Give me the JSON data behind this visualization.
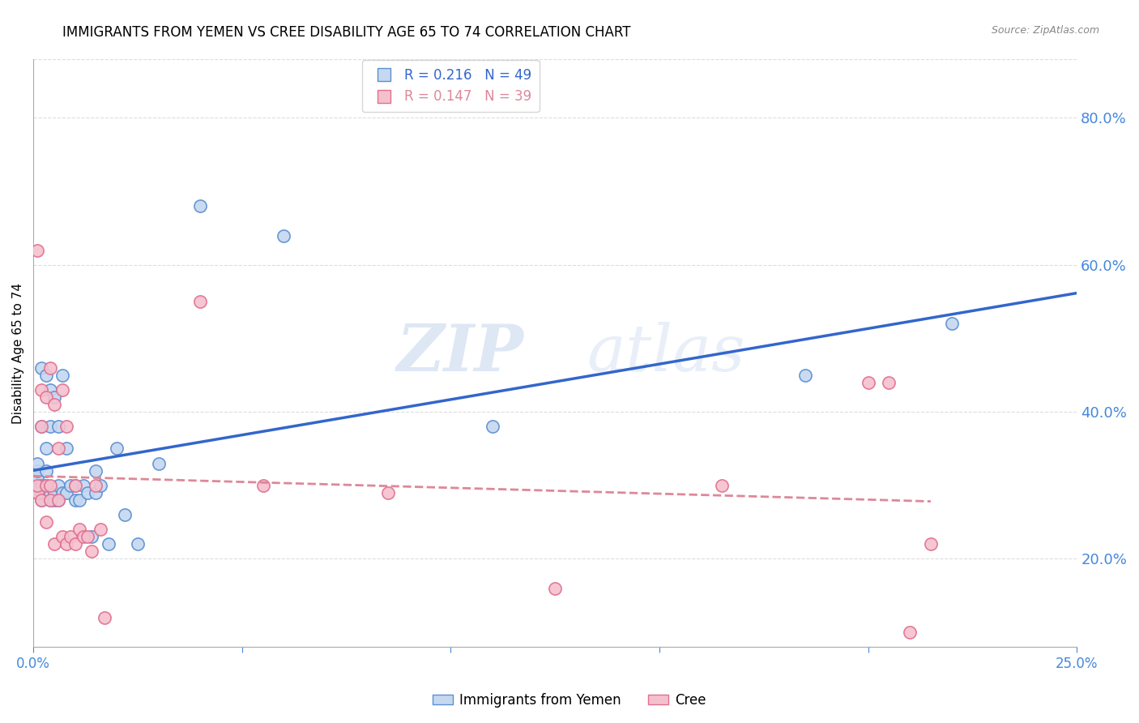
{
  "title": "IMMIGRANTS FROM YEMEN VS CREE DISABILITY AGE 65 TO 74 CORRELATION CHART",
  "source": "Source: ZipAtlas.com",
  "ylabel": "Disability Age 65 to 74",
  "xlim": [
    0.0,
    0.25
  ],
  "ylim": [
    0.08,
    0.88
  ],
  "xticks": [
    0.0,
    0.05,
    0.1,
    0.15,
    0.2,
    0.25
  ],
  "xtick_labels": [
    "0.0%",
    "",
    "",
    "",
    "",
    "25.0%"
  ],
  "yticks": [
    0.2,
    0.4,
    0.6,
    0.8
  ],
  "r_yemen": 0.216,
  "n_yemen": 49,
  "r_cree": 0.147,
  "n_cree": 39,
  "color_yemen_fill": "#c5d8f0",
  "color_yemen_edge": "#5b8fd4",
  "color_cree_fill": "#f5c0ce",
  "color_cree_edge": "#e07090",
  "color_line_yemen": "#3366cc",
  "color_line_cree": "#dd8899",
  "color_axis_text": "#4488dd",
  "color_grid": "#dddddd",
  "background_color": "#ffffff",
  "legend_label_yemen": "Immigrants from Yemen",
  "legend_label_cree": "Cree",
  "yemen_x": [
    0.001,
    0.001,
    0.001,
    0.001,
    0.001,
    0.002,
    0.002,
    0.002,
    0.002,
    0.002,
    0.003,
    0.003,
    0.003,
    0.003,
    0.003,
    0.004,
    0.004,
    0.004,
    0.004,
    0.005,
    0.005,
    0.005,
    0.006,
    0.006,
    0.006,
    0.007,
    0.007,
    0.008,
    0.008,
    0.009,
    0.01,
    0.01,
    0.011,
    0.012,
    0.013,
    0.014,
    0.015,
    0.015,
    0.016,
    0.018,
    0.02,
    0.022,
    0.025,
    0.03,
    0.04,
    0.06,
    0.11,
    0.185,
    0.22
  ],
  "yemen_y": [
    0.29,
    0.3,
    0.31,
    0.32,
    0.33,
    0.28,
    0.29,
    0.3,
    0.38,
    0.46,
    0.29,
    0.3,
    0.32,
    0.35,
    0.45,
    0.28,
    0.29,
    0.38,
    0.43,
    0.28,
    0.29,
    0.42,
    0.28,
    0.3,
    0.38,
    0.29,
    0.45,
    0.29,
    0.35,
    0.3,
    0.28,
    0.3,
    0.28,
    0.3,
    0.29,
    0.23,
    0.29,
    0.32,
    0.3,
    0.22,
    0.35,
    0.26,
    0.22,
    0.33,
    0.68,
    0.64,
    0.38,
    0.45,
    0.52
  ],
  "cree_x": [
    0.001,
    0.001,
    0.001,
    0.002,
    0.002,
    0.002,
    0.003,
    0.003,
    0.003,
    0.004,
    0.004,
    0.004,
    0.005,
    0.005,
    0.006,
    0.006,
    0.007,
    0.007,
    0.008,
    0.008,
    0.009,
    0.01,
    0.01,
    0.011,
    0.012,
    0.013,
    0.014,
    0.015,
    0.016,
    0.017,
    0.04,
    0.055,
    0.085,
    0.125,
    0.165,
    0.2,
    0.205,
    0.21,
    0.215
  ],
  "cree_y": [
    0.29,
    0.3,
    0.62,
    0.28,
    0.38,
    0.43,
    0.25,
    0.3,
    0.42,
    0.28,
    0.3,
    0.46,
    0.22,
    0.41,
    0.28,
    0.35,
    0.23,
    0.43,
    0.22,
    0.38,
    0.23,
    0.22,
    0.3,
    0.24,
    0.23,
    0.23,
    0.21,
    0.3,
    0.24,
    0.12,
    0.55,
    0.3,
    0.29,
    0.16,
    0.3,
    0.44,
    0.44,
    0.1,
    0.22
  ],
  "watermark_zip": "ZIP",
  "watermark_atlas": "atlas",
  "title_fontsize": 12,
  "axis_label_fontsize": 11,
  "tick_fontsize": 12,
  "legend_fontsize": 12,
  "marker_size": 120,
  "marker_linewidth": 1.2
}
